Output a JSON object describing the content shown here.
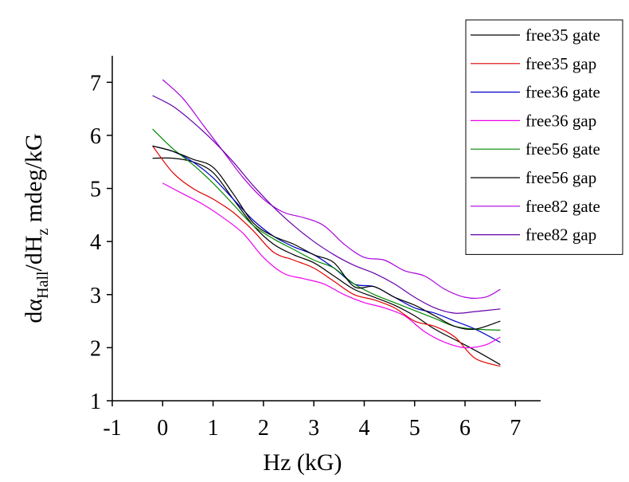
{
  "chart_data": {
    "type": "line",
    "xlabel": "Hz (kG)",
    "ylabel": {
      "base": "dα",
      "sub1": "Hall",
      "mid": "/dH",
      "sub2": "z",
      "end": " mdeg/kG"
    },
    "xlim": [
      -1,
      7.5
    ],
    "ylim": [
      1,
      7.5
    ],
    "xticks": [
      -1,
      0,
      1,
      2,
      3,
      4,
      5,
      6,
      7
    ],
    "yticks": [
      1,
      2,
      3,
      4,
      5,
      6,
      7
    ],
    "grid": false,
    "legend_position": "top-right",
    "series": [
      {
        "name": "free35 gate",
        "color": "#000000",
        "x": [
          -0.2,
          0.2,
          0.6,
          1.0,
          1.4,
          1.8,
          2.2,
          2.6,
          3.0,
          3.4,
          3.8,
          4.2,
          4.6,
          5.0,
          5.4,
          5.8,
          6.2,
          6.7
        ],
        "y": [
          5.57,
          5.57,
          5.5,
          5.3,
          4.8,
          4.3,
          3.95,
          3.75,
          3.6,
          3.35,
          3.1,
          2.95,
          2.8,
          2.6,
          2.35,
          2.15,
          1.95,
          1.68
        ]
      },
      {
        "name": "free35 gap",
        "color": "#e00000",
        "x": [
          -0.2,
          0.2,
          0.6,
          1.0,
          1.4,
          1.8,
          2.2,
          2.6,
          3.0,
          3.4,
          3.8,
          4.2,
          4.6,
          5.0,
          5.4,
          5.8,
          6.2,
          6.7
        ],
        "y": [
          5.8,
          5.3,
          5.0,
          4.8,
          4.55,
          4.2,
          3.8,
          3.65,
          3.5,
          3.25,
          3.0,
          2.9,
          2.75,
          2.5,
          2.4,
          2.2,
          1.8,
          1.65
        ]
      },
      {
        "name": "free36 gate",
        "color": "#0000cc",
        "x": [
          -0.2,
          0.2,
          0.6,
          1.0,
          1.4,
          1.8,
          2.2,
          2.6,
          3.0,
          3.4,
          3.8,
          4.2,
          4.6,
          5.0,
          5.4,
          5.8,
          6.2,
          6.7
        ],
        "y": [
          5.8,
          5.7,
          5.5,
          5.2,
          4.8,
          4.4,
          4.1,
          3.9,
          3.75,
          3.5,
          3.2,
          3.15,
          2.95,
          2.75,
          2.65,
          2.5,
          2.35,
          2.1
        ]
      },
      {
        "name": "free36 gap",
        "color": "#ee00ee",
        "x": [
          0.0,
          0.4,
          0.8,
          1.2,
          1.6,
          2.0,
          2.4,
          2.8,
          3.2,
          3.6,
          4.0,
          4.4,
          4.8,
          5.2,
          5.6,
          6.0,
          6.4,
          6.7
        ],
        "y": [
          5.1,
          4.9,
          4.7,
          4.45,
          4.15,
          3.7,
          3.4,
          3.3,
          3.2,
          3.0,
          2.85,
          2.75,
          2.6,
          2.3,
          2.1,
          2.0,
          2.05,
          2.2
        ]
      },
      {
        "name": "free56 gate",
        "color": "#008800",
        "x": [
          -0.2,
          0.2,
          0.6,
          1.0,
          1.4,
          1.8,
          2.2,
          2.6,
          3.0,
          3.4,
          3.8,
          4.2,
          4.6,
          5.0,
          5.4,
          5.8,
          6.2,
          6.7
        ],
        "y": [
          6.12,
          5.75,
          5.45,
          5.1,
          4.7,
          4.3,
          4.05,
          3.85,
          3.65,
          3.5,
          3.2,
          3.0,
          2.85,
          2.7,
          2.55,
          2.4,
          2.35,
          2.33
        ]
      },
      {
        "name": "free56 gap",
        "color": "#000000",
        "x": [
          -0.2,
          0.2,
          0.6,
          1.0,
          1.4,
          1.8,
          2.2,
          2.6,
          3.0,
          3.4,
          3.8,
          4.2,
          4.6,
          5.0,
          5.4,
          5.8,
          6.2,
          6.7
        ],
        "y": [
          5.8,
          5.7,
          5.55,
          5.4,
          4.9,
          4.35,
          4.1,
          3.95,
          3.75,
          3.6,
          3.15,
          3.15,
          2.95,
          2.8,
          2.6,
          2.4,
          2.35,
          2.5
        ]
      },
      {
        "name": "free82 gate",
        "color": "#aa00dd",
        "x": [
          0.0,
          0.4,
          0.8,
          1.2,
          1.6,
          2.0,
          2.4,
          2.8,
          3.2,
          3.6,
          4.0,
          4.4,
          4.8,
          5.2,
          5.6,
          6.0,
          6.4,
          6.7
        ],
        "y": [
          7.05,
          6.7,
          6.2,
          5.7,
          5.2,
          4.8,
          4.55,
          4.45,
          4.3,
          3.95,
          3.7,
          3.65,
          3.45,
          3.35,
          3.1,
          2.95,
          2.95,
          3.1
        ]
      },
      {
        "name": "free82 gap",
        "color": "#6600aa",
        "x": [
          -0.2,
          0.2,
          0.6,
          1.0,
          1.4,
          1.8,
          2.2,
          2.6,
          3.0,
          3.4,
          3.8,
          4.2,
          4.6,
          5.0,
          5.4,
          5.8,
          6.2,
          6.7
        ],
        "y": [
          6.75,
          6.55,
          6.25,
          5.9,
          5.5,
          5.05,
          4.65,
          4.3,
          4.0,
          3.75,
          3.55,
          3.4,
          3.2,
          2.95,
          2.75,
          2.65,
          2.68,
          2.73
        ]
      }
    ]
  }
}
